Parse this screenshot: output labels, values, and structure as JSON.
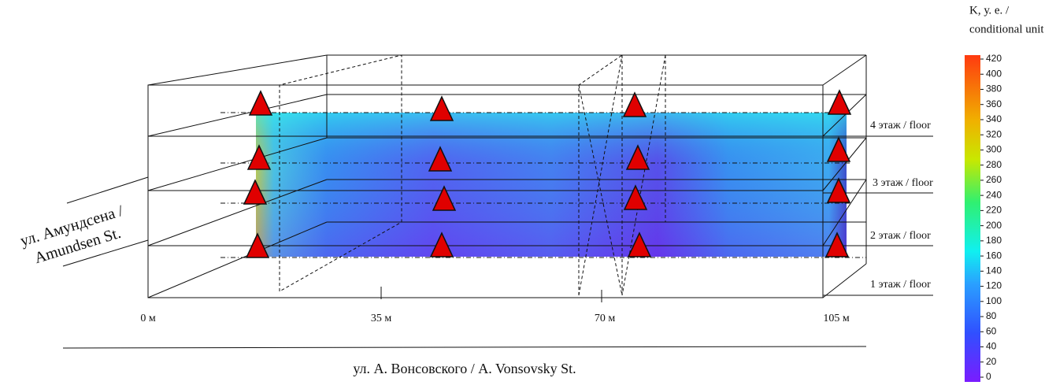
{
  "colorbar": {
    "title": [
      "K, у. е. /",
      "conditional unit"
    ],
    "ticks": [
      420,
      400,
      380,
      360,
      340,
      320,
      300,
      280,
      260,
      240,
      220,
      200,
      180,
      160,
      140,
      120,
      100,
      80,
      60,
      40,
      20,
      0
    ]
  },
  "floors": [
    "4 этаж / floor",
    "3 этаж / floor",
    "2 этаж / floor",
    "1 этаж / floor"
  ],
  "distances": [
    "0 м",
    "35 м",
    "70 м",
    "105 м"
  ],
  "streets": {
    "left": [
      "ул. Амундсена /",
      "Amundsen St."
    ],
    "bottom": "ул. А. Вонсовского / A. Vonsovsky St."
  }
}
